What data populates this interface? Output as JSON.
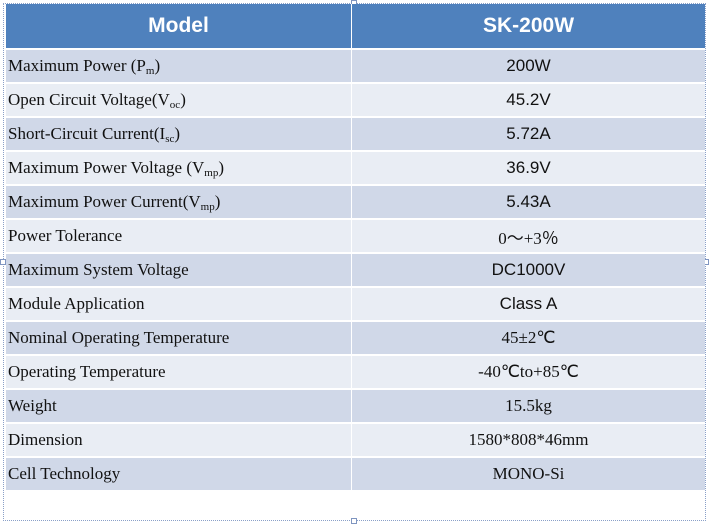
{
  "header": {
    "col1": "Model",
    "col2": "SK-200W"
  },
  "rows": [
    {
      "label": "Maximum Power (P",
      "sub": "m",
      "suffix": ")",
      "value": "200W",
      "value_font": "sans"
    },
    {
      "label": "Open Circuit Voltage(V",
      "sub": "oc",
      "suffix": ")",
      "value": "45.2V",
      "value_font": "sans"
    },
    {
      "label": "Short-Circuit Current(I",
      "sub": "sc",
      "suffix": ")",
      "value": "5.72A",
      "value_font": "sans"
    },
    {
      "label": "Maximum Power Voltage (V",
      "sub": "mp",
      "suffix": ")",
      "value": "36.9V",
      "value_font": "sans"
    },
    {
      "label": "Maximum Power Current(V",
      "sub": "mp",
      "suffix": ")",
      "value": "5.43A",
      "value_font": "sans"
    },
    {
      "label": "Power Tolerance",
      "sub": "",
      "suffix": "",
      "value": "0～+3％",
      "value_font": "serif"
    },
    {
      "label": "Maximum System Voltage",
      "sub": "",
      "suffix": "",
      "value": "DC1000V",
      "value_font": "sans"
    },
    {
      "label": "Module Application",
      "sub": "",
      "suffix": "",
      "value": "Class A",
      "value_font": "sans"
    },
    {
      "label": "Nominal Operating Temperature",
      "sub": "",
      "suffix": "",
      "value": "45±2℃",
      "value_font": "serif"
    },
    {
      "label": "Operating Temperature",
      "sub": "",
      "suffix": "",
      "value": "-40℃to+85℃",
      "value_font": "serif"
    },
    {
      "label": "Weight",
      "sub": "",
      "suffix": "",
      "value": "15.5kg",
      "value_font": "serif"
    },
    {
      "label": "Dimension",
      "sub": "",
      "suffix": "",
      "value": "1580*808*46mm",
      "value_font": "serif"
    },
    {
      "label": "Cell Technology",
      "sub": "",
      "suffix": "",
      "value": "MONO-Si",
      "value_font": "serif"
    }
  ],
  "colors": {
    "header_bg": "#4f81bd",
    "row_odd": "#d0d8e8",
    "row_even": "#e9edf4"
  }
}
